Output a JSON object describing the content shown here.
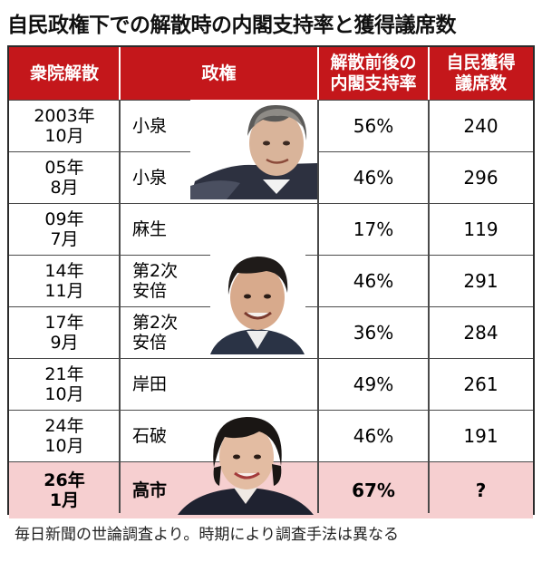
{
  "title": "自民政権下での解散時の内閣支持率と獲得議席数",
  "headers": {
    "col1": "衆院解散",
    "col2": "政権",
    "col3_line1": "解散前後の",
    "col3_line2": "内閣支持率",
    "col4_line1": "自民獲得",
    "col4_line2": "議席数"
  },
  "rows": [
    {
      "date_line1": "2003年",
      "date_line2": "10月",
      "pm_line1": "小泉",
      "pm_line2": "",
      "support": "56%",
      "seats": "240"
    },
    {
      "date_line1": "05年",
      "date_line2": "8月",
      "pm_line1": "小泉",
      "pm_line2": "",
      "support": "46%",
      "seats": "296"
    },
    {
      "date_line1": "09年",
      "date_line2": "7月",
      "pm_line1": "麻生",
      "pm_line2": "",
      "support": "17%",
      "seats": "119"
    },
    {
      "date_line1": "14年",
      "date_line2": "11月",
      "pm_line1": "第2次",
      "pm_line2": "安倍",
      "support": "46%",
      "seats": "291"
    },
    {
      "date_line1": "17年",
      "date_line2": "9月",
      "pm_line1": "第2次",
      "pm_line2": "安倍",
      "support": "36%",
      "seats": "284"
    },
    {
      "date_line1": "21年",
      "date_line2": "10月",
      "pm_line1": "岸田",
      "pm_line2": "",
      "support": "49%",
      "seats": "261"
    },
    {
      "date_line1": "24年",
      "date_line2": "10月",
      "pm_line1": "石破",
      "pm_line2": "",
      "support": "46%",
      "seats": "191"
    },
    {
      "date_line1": "26年",
      "date_line2": "1月",
      "pm_line1": "高市",
      "pm_line2": "",
      "support": "67%",
      "seats": "?"
    }
  ],
  "footnote": "毎日新聞の世論調査より。時期により調査手法は異なる",
  "colors": {
    "header_bg": "#c4171b",
    "highlight_row": "#f6cfd0",
    "grid": "#4a4a4a"
  },
  "portraits": [
    "koizumi-portrait",
    "abe-portrait",
    "takaichi-portrait"
  ]
}
